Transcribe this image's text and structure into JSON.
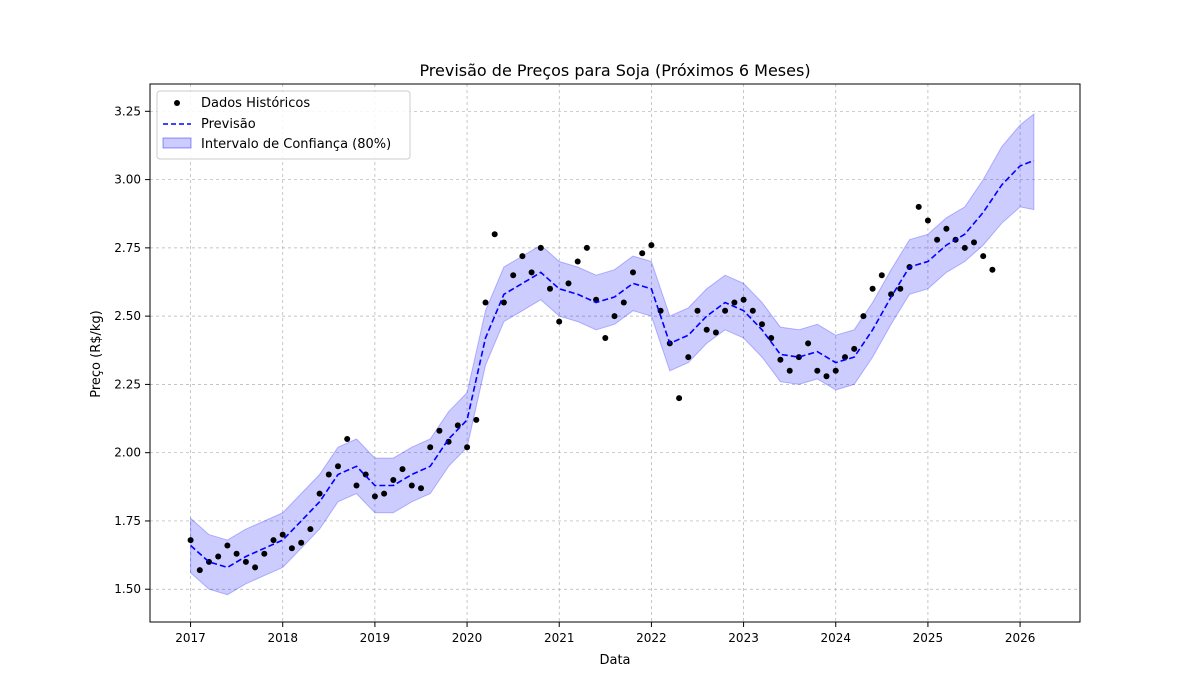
{
  "chart_data": {
    "type": "line",
    "title": "Previsão de Preços para Soja (Próximos 6 Meses)",
    "xlabel": "Data",
    "ylabel": "Preço (R$/kg)",
    "xlim": [
      2016.56,
      2026.65
    ],
    "ylim": [
      1.38,
      3.35
    ],
    "x_ticks": [
      2017,
      2018,
      2019,
      2020,
      2021,
      2022,
      2023,
      2024,
      2025,
      2026
    ],
    "x_tick_labels": [
      "2017",
      "2018",
      "2019",
      "2020",
      "2021",
      "2022",
      "2023",
      "2024",
      "2025",
      "2026"
    ],
    "y_ticks": [
      1.5,
      1.75,
      2.0,
      2.25,
      2.5,
      2.75,
      3.0,
      3.25
    ],
    "y_tick_labels": [
      "1.50",
      "1.75",
      "2.00",
      "2.25",
      "2.50",
      "2.75",
      "3.00",
      "3.25"
    ],
    "grid": true,
    "legend_position": "upper-left",
    "colors": {
      "historical": "#000000",
      "forecast": "#0000ff",
      "interval": "#0000ff"
    },
    "series": [
      {
        "name": "Dados Históricos",
        "kind": "scatter",
        "x": [
          2017.0,
          2017.1,
          2017.2,
          2017.3,
          2017.4,
          2017.5,
          2017.6,
          2017.7,
          2017.8,
          2017.9,
          2018.0,
          2018.1,
          2018.2,
          2018.3,
          2018.4,
          2018.5,
          2018.6,
          2018.7,
          2018.8,
          2018.9,
          2019.0,
          2019.1,
          2019.2,
          2019.3,
          2019.4,
          2019.5,
          2019.6,
          2019.7,
          2019.8,
          2019.9,
          2020.0,
          2020.1,
          2020.2,
          2020.3,
          2020.4,
          2020.5,
          2020.6,
          2020.7,
          2020.8,
          2020.9,
          2021.0,
          2021.1,
          2021.2,
          2021.3,
          2021.4,
          2021.5,
          2021.6,
          2021.7,
          2021.8,
          2021.9,
          2022.0,
          2022.1,
          2022.2,
          2022.3,
          2022.4,
          2022.5,
          2022.6,
          2022.7,
          2022.8,
          2022.9,
          2023.0,
          2023.1,
          2023.2,
          2023.3,
          2023.4,
          2023.5,
          2023.6,
          2023.7,
          2023.8,
          2023.9,
          2024.0,
          2024.1,
          2024.2,
          2024.3,
          2024.4,
          2024.5,
          2024.6,
          2024.7,
          2024.8,
          2024.9,
          2025.0,
          2025.1,
          2025.2,
          2025.3,
          2025.4,
          2025.5,
          2025.6,
          2025.7
        ],
        "y": [
          1.68,
          1.57,
          1.6,
          1.62,
          1.66,
          1.63,
          1.6,
          1.58,
          1.63,
          1.68,
          1.7,
          1.65,
          1.67,
          1.72,
          1.85,
          1.92,
          1.95,
          2.05,
          1.88,
          1.92,
          1.84,
          1.85,
          1.9,
          1.94,
          1.88,
          1.87,
          2.02,
          2.08,
          2.04,
          2.1,
          2.02,
          2.12,
          2.55,
          2.8,
          2.55,
          2.65,
          2.72,
          2.66,
          2.75,
          2.6,
          2.48,
          2.62,
          2.7,
          2.75,
          2.56,
          2.42,
          2.5,
          2.55,
          2.66,
          2.73,
          2.76,
          2.52,
          2.4,
          2.2,
          2.35,
          2.52,
          2.45,
          2.44,
          2.52,
          2.55,
          2.56,
          2.52,
          2.47,
          2.42,
          2.34,
          2.3,
          2.35,
          2.4,
          2.3,
          2.28,
          2.3,
          2.35,
          2.38,
          2.5,
          2.6,
          2.65,
          2.58,
          2.6,
          2.68,
          2.9,
          2.85,
          2.78,
          2.82,
          2.78,
          2.75,
          2.77,
          2.72,
          2.67
        ]
      },
      {
        "name": "Previsão",
        "kind": "line",
        "x": [
          2017.0,
          2017.2,
          2017.4,
          2017.6,
          2017.8,
          2018.0,
          2018.2,
          2018.4,
          2018.6,
          2018.8,
          2019.0,
          2019.2,
          2019.4,
          2019.6,
          2019.8,
          2020.0,
          2020.2,
          2020.4,
          2020.6,
          2020.8,
          2021.0,
          2021.2,
          2021.4,
          2021.6,
          2021.8,
          2022.0,
          2022.2,
          2022.4,
          2022.6,
          2022.8,
          2023.0,
          2023.2,
          2023.4,
          2023.6,
          2023.8,
          2024.0,
          2024.2,
          2024.4,
          2024.6,
          2024.8,
          2025.0,
          2025.2,
          2025.4,
          2025.6,
          2025.8,
          2026.0,
          2026.15
        ],
        "y": [
          1.66,
          1.6,
          1.58,
          1.62,
          1.65,
          1.68,
          1.75,
          1.82,
          1.92,
          1.95,
          1.88,
          1.88,
          1.92,
          1.95,
          2.05,
          2.12,
          2.42,
          2.58,
          2.62,
          2.66,
          2.6,
          2.58,
          2.55,
          2.57,
          2.62,
          2.6,
          2.4,
          2.43,
          2.5,
          2.55,
          2.52,
          2.45,
          2.36,
          2.35,
          2.37,
          2.33,
          2.35,
          2.45,
          2.57,
          2.68,
          2.7,
          2.76,
          2.8,
          2.88,
          2.98,
          3.05,
          3.07
        ]
      },
      {
        "name": "Intervalo de Confiança (80%)",
        "kind": "area",
        "x": [
          2017.0,
          2017.2,
          2017.4,
          2017.6,
          2017.8,
          2018.0,
          2018.2,
          2018.4,
          2018.6,
          2018.8,
          2019.0,
          2019.2,
          2019.4,
          2019.6,
          2019.8,
          2020.0,
          2020.2,
          2020.4,
          2020.6,
          2020.8,
          2021.0,
          2021.2,
          2021.4,
          2021.6,
          2021.8,
          2022.0,
          2022.2,
          2022.4,
          2022.6,
          2022.8,
          2023.0,
          2023.2,
          2023.4,
          2023.6,
          2023.8,
          2024.0,
          2024.2,
          2024.4,
          2024.6,
          2024.8,
          2025.0,
          2025.2,
          2025.4,
          2025.6,
          2025.8,
          2026.0,
          2026.15
        ],
        "lower": [
          1.56,
          1.5,
          1.48,
          1.52,
          1.55,
          1.58,
          1.65,
          1.72,
          1.82,
          1.85,
          1.78,
          1.78,
          1.82,
          1.85,
          1.95,
          2.02,
          2.32,
          2.48,
          2.52,
          2.56,
          2.5,
          2.48,
          2.45,
          2.47,
          2.52,
          2.5,
          2.3,
          2.33,
          2.4,
          2.45,
          2.42,
          2.35,
          2.26,
          2.25,
          2.27,
          2.23,
          2.25,
          2.35,
          2.47,
          2.58,
          2.6,
          2.66,
          2.7,
          2.76,
          2.84,
          2.9,
          2.89
        ],
        "upper": [
          1.76,
          1.7,
          1.68,
          1.72,
          1.75,
          1.78,
          1.85,
          1.92,
          2.02,
          2.05,
          1.98,
          1.98,
          2.02,
          2.05,
          2.15,
          2.22,
          2.52,
          2.68,
          2.72,
          2.76,
          2.7,
          2.68,
          2.65,
          2.67,
          2.72,
          2.7,
          2.5,
          2.53,
          2.6,
          2.65,
          2.62,
          2.55,
          2.46,
          2.45,
          2.47,
          2.43,
          2.45,
          2.55,
          2.67,
          2.78,
          2.8,
          2.86,
          2.9,
          3.0,
          3.12,
          3.2,
          3.24
        ]
      }
    ]
  }
}
